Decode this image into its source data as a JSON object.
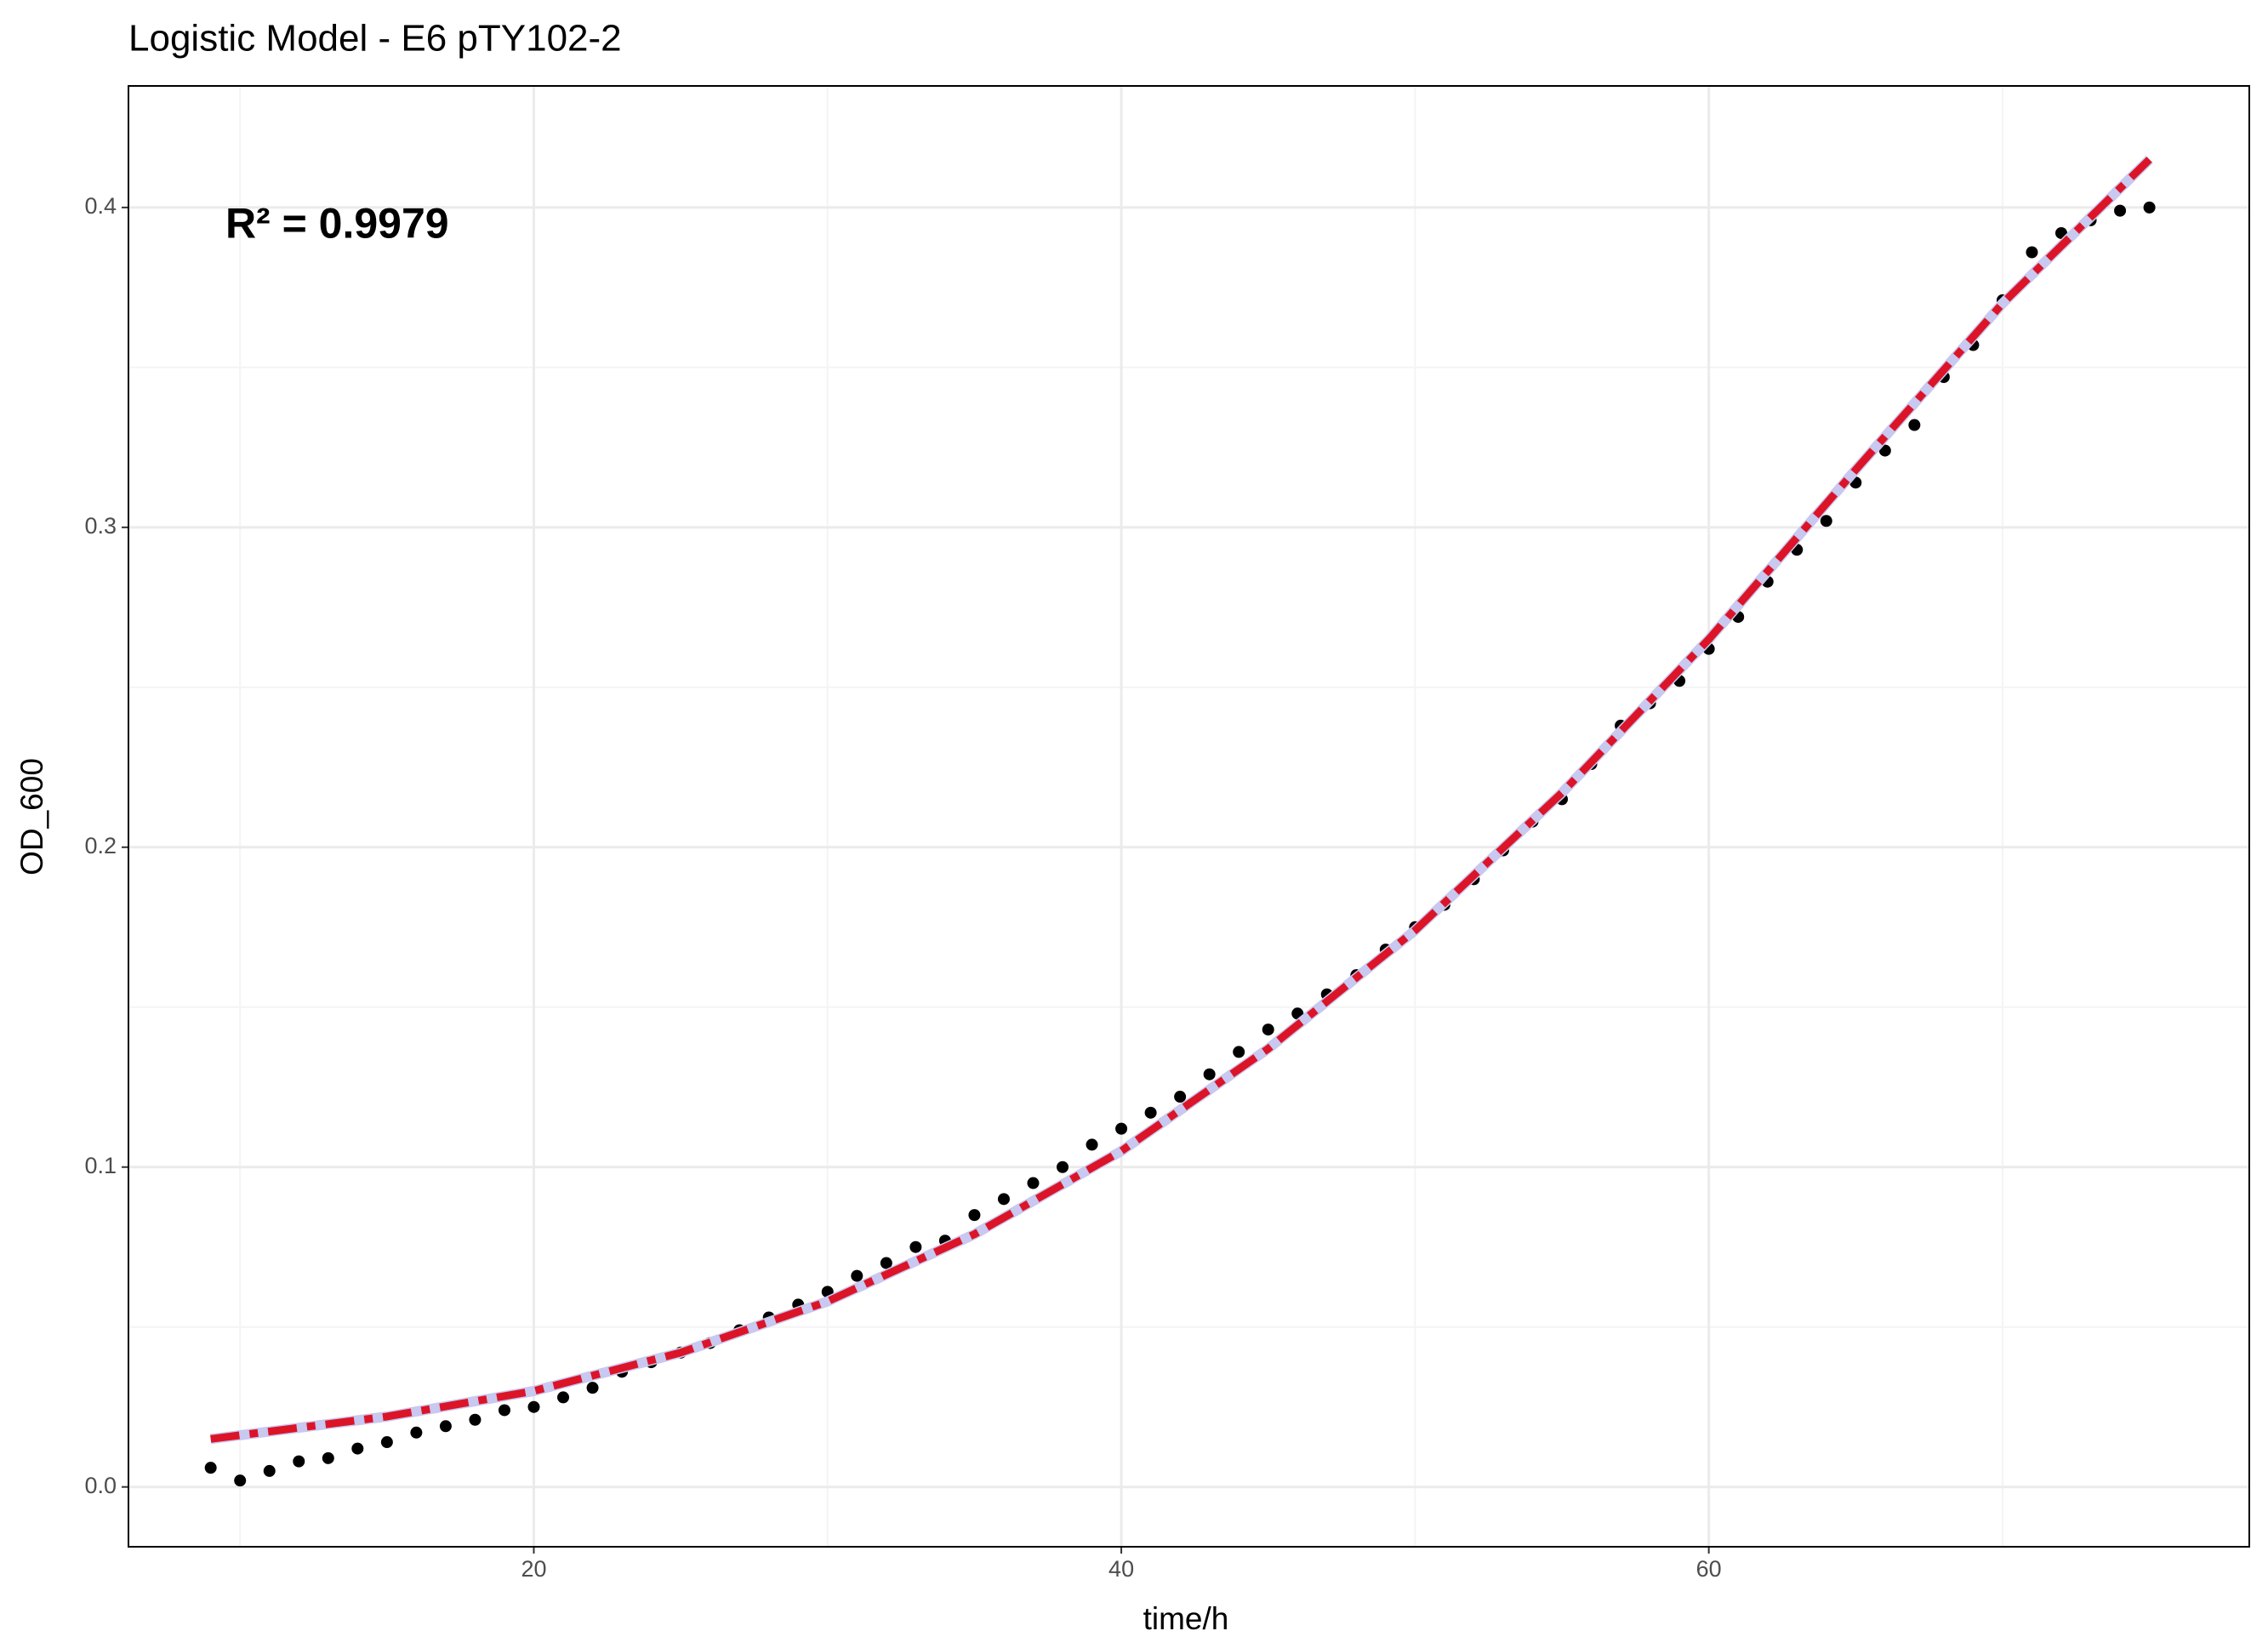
{
  "chart_data": {
    "type": "scatter",
    "title": "Logistic Model -  E6 pTY102-2",
    "xlabel": "time/h",
    "ylabel": "OD_600",
    "x": [
      9,
      10,
      11,
      12,
      13,
      14,
      15,
      16,
      17,
      18,
      19,
      20,
      21,
      22,
      23,
      24,
      25,
      26,
      27,
      28,
      29,
      30,
      31,
      32,
      33,
      34,
      35,
      36,
      37,
      38,
      39,
      40,
      41,
      42,
      43,
      44,
      45,
      46,
      47,
      48,
      49,
      50,
      51,
      52,
      53,
      54,
      55,
      56,
      57,
      58,
      59,
      60,
      61,
      62,
      63,
      64,
      65,
      66,
      67,
      68,
      69,
      70,
      71,
      72,
      73,
      74,
      75
    ],
    "values": [
      0.006,
      0.002,
      0.005,
      0.008,
      0.009,
      0.012,
      0.014,
      0.017,
      0.019,
      0.021,
      0.024,
      0.025,
      0.028,
      0.031,
      0.036,
      0.039,
      0.042,
      0.045,
      0.049,
      0.053,
      0.057,
      0.061,
      0.066,
      0.07,
      0.075,
      0.077,
      0.085,
      0.09,
      0.095,
      0.1,
      0.107,
      0.112,
      0.117,
      0.122,
      0.129,
      0.136,
      0.143,
      0.148,
      0.154,
      0.16,
      0.168,
      0.175,
      0.182,
      0.19,
      0.199,
      0.208,
      0.215,
      0.226,
      0.238,
      0.245,
      0.252,
      0.262,
      0.272,
      0.283,
      0.293,
      0.302,
      0.314,
      0.324,
      0.332,
      0.347,
      0.357,
      0.371,
      0.386,
      0.392,
      0.396,
      0.399,
      0.4
    ],
    "color": "#000000",
    "lines": [
      {
        "x": [
          9,
          15,
          20,
          25,
          30,
          35,
          40,
          45,
          50,
          55,
          60,
          65,
          70,
          75
        ],
        "values": [
          0.015,
          0.022,
          0.03,
          0.042,
          0.058,
          0.079,
          0.105,
          0.137,
          0.174,
          0.217,
          0.265,
          0.318,
          0.37,
          0.415
        ],
        "color": "#c8c8f0",
        "linetype": "solid"
      },
      {
        "x": [
          9,
          15,
          20,
          25,
          30,
          35,
          40,
          45,
          50,
          55,
          60,
          65,
          70,
          75
        ],
        "values": [
          0.015,
          0.022,
          0.03,
          0.042,
          0.058,
          0.079,
          0.105,
          0.137,
          0.174,
          0.217,
          0.265,
          0.318,
          0.37,
          0.415
        ],
        "color": "#dc1428",
        "linetype": "twodash"
      }
    ],
    "annotation": {
      "text": "R² = 0.9979",
      "x": 9.5,
      "y": 0.394,
      "color": "#8b0000"
    },
    "xlim": [
      6.2,
      78.4
    ],
    "ylim": [
      -0.0187,
      0.438
    ],
    "xticks": [
      20,
      40,
      60
    ],
    "xminor": [
      10,
      30,
      50,
      70
    ],
    "yticks": [
      {
        "value": 0,
        "label": "0.0"
      },
      0.1,
      0.2,
      0.3,
      0.4
    ],
    "yminor": [
      0.05,
      0.15,
      0.25,
      0.35
    ],
    "grid": true
  }
}
